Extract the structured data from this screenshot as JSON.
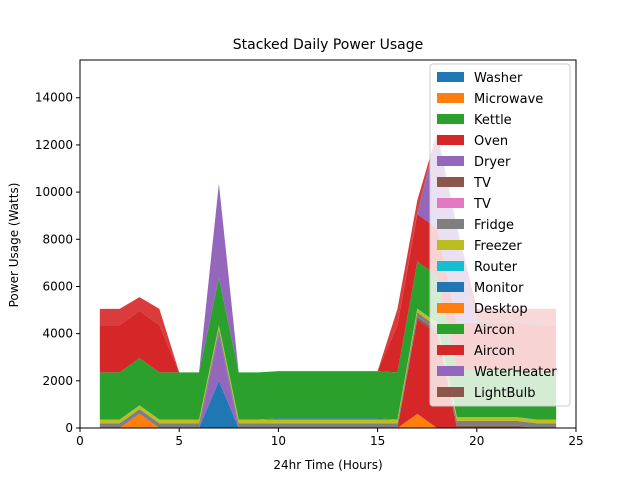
{
  "chart_data": {
    "type": "area",
    "title": "Stacked Daily Power Usage",
    "xlabel": "24hr Time (Hours)",
    "ylabel": "Power Usage (Watts)",
    "xlim": [
      0,
      25
    ],
    "ylim": [
      0,
      15600
    ],
    "xticks": [
      0,
      5,
      10,
      15,
      20,
      25
    ],
    "yticks": [
      0,
      2000,
      4000,
      6000,
      8000,
      10000,
      12000,
      14000
    ],
    "grid": false,
    "legend_position": "top-right",
    "x": [
      1,
      2,
      3,
      4,
      5,
      6,
      7,
      8,
      9,
      10,
      11,
      12,
      13,
      14,
      15,
      16,
      17,
      18,
      19,
      20,
      21,
      22,
      23,
      24
    ],
    "series": [
      {
        "name": "Washer",
        "color": "#1f77b4",
        "values": [
          0,
          0,
          0,
          0,
          0,
          0,
          2000,
          0,
          0,
          0,
          0,
          0,
          0,
          0,
          0,
          0,
          0,
          0,
          0,
          0,
          0,
          0,
          0,
          0
        ]
      },
      {
        "name": "Microwave",
        "color": "#ff7f0e",
        "values": [
          0,
          0,
          600,
          0,
          0,
          0,
          0,
          0,
          0,
          0,
          0,
          0,
          0,
          0,
          0,
          0,
          600,
          0,
          0,
          0,
          0,
          0,
          0,
          0
        ]
      },
      {
        "name": "Kettle",
        "color": "#2ca02c",
        "values": [
          0,
          0,
          0,
          0,
          0,
          0,
          0,
          0,
          0,
          0,
          0,
          0,
          0,
          0,
          0,
          0,
          0,
          0,
          0,
          0,
          0,
          0,
          0,
          0
        ]
      },
      {
        "name": "Oven",
        "color": "#d62728",
        "values": [
          0,
          0,
          0,
          0,
          0,
          0,
          0,
          0,
          0,
          0,
          0,
          0,
          0,
          0,
          0,
          0,
          4000,
          4000,
          0,
          0,
          0,
          0,
          0,
          0
        ]
      },
      {
        "name": "Dryer",
        "color": "#9467bd",
        "values": [
          0,
          0,
          0,
          0,
          0,
          0,
          2000,
          0,
          0,
          0,
          0,
          0,
          0,
          0,
          0,
          0,
          0,
          0,
          0,
          0,
          0,
          0,
          0,
          0
        ]
      },
      {
        "name": "TV",
        "color": "#8c564b",
        "values": [
          0,
          0,
          0,
          0,
          0,
          0,
          0,
          0,
          0,
          0,
          0,
          0,
          0,
          0,
          0,
          0,
          100,
          100,
          100,
          100,
          100,
          100,
          0,
          0
        ]
      },
      {
        "name": "TV",
        "color": "#e377c2",
        "values": [
          0,
          0,
          0,
          0,
          0,
          0,
          0,
          0,
          0,
          0,
          0,
          0,
          0,
          0,
          0,
          0,
          0,
          0,
          0,
          0,
          0,
          0,
          0,
          0
        ]
      },
      {
        "name": "Fridge",
        "color": "#7f7f7f",
        "values": [
          200,
          200,
          200,
          200,
          200,
          200,
          200,
          200,
          200,
          200,
          200,
          200,
          200,
          200,
          200,
          200,
          200,
          200,
          200,
          200,
          200,
          200,
          200,
          200
        ]
      },
      {
        "name": "Freezer",
        "color": "#bcbd22",
        "values": [
          150,
          150,
          150,
          150,
          150,
          150,
          150,
          150,
          150,
          150,
          150,
          150,
          150,
          150,
          150,
          150,
          150,
          150,
          150,
          150,
          150,
          150,
          150,
          150
        ]
      },
      {
        "name": "Router",
        "color": "#17becf",
        "values": [
          10,
          10,
          10,
          10,
          10,
          10,
          10,
          10,
          10,
          10,
          10,
          10,
          10,
          10,
          10,
          10,
          10,
          10,
          10,
          10,
          10,
          10,
          10,
          10
        ]
      },
      {
        "name": "Monitor",
        "color": "#1f77b4",
        "values": [
          0,
          0,
          0,
          0,
          0,
          0,
          0,
          0,
          0,
          50,
          50,
          50,
          50,
          50,
          50,
          0,
          0,
          0,
          0,
          0,
          0,
          0,
          0,
          0
        ]
      },
      {
        "name": "Desktop",
        "color": "#ff7f0e",
        "values": [
          0,
          0,
          0,
          0,
          0,
          0,
          0,
          0,
          0,
          0,
          0,
          0,
          0,
          0,
          0,
          0,
          0,
          0,
          0,
          0,
          0,
          0,
          0,
          0
        ]
      },
      {
        "name": "Aircon",
        "color": "#2ca02c",
        "values": [
          2000,
          2000,
          2000,
          2000,
          2000,
          2000,
          2000,
          2000,
          2000,
          2000,
          2000,
          2000,
          2000,
          2000,
          2000,
          2000,
          2000,
          2000,
          2000,
          2000,
          2000,
          2000,
          2000,
          2000
        ]
      },
      {
        "name": "Aircon",
        "color": "#d62728",
        "values": [
          2000,
          2000,
          2000,
          2000,
          0,
          0,
          0,
          0,
          0,
          0,
          0,
          0,
          0,
          0,
          0,
          2000,
          2000,
          2000,
          2000,
          2000,
          2000,
          2000,
          2000,
          2000
        ]
      },
      {
        "name": "WaterHeater",
        "color": "#9467bd",
        "values": [
          0,
          0,
          0,
          0,
          0,
          0,
          4000,
          0,
          0,
          0,
          0,
          0,
          0,
          0,
          0,
          0,
          0,
          4000,
          4000,
          0,
          0,
          0,
          0,
          0
        ]
      },
      {
        "name": "LightBulb",
        "color": "#8c564b",
        "values": [
          0,
          0,
          0,
          0,
          0,
          0,
          0,
          0,
          0,
          0,
          0,
          0,
          0,
          0,
          0,
          0,
          60,
          60,
          60,
          60,
          60,
          60,
          60,
          0
        ]
      }
    ],
    "overlay_series": [
      {
        "name": "Desktop",
        "color": "#ff7f0e",
        "values": [
          1050,
          1050,
          1550,
          1050,
          350,
          350,
          350,
          350,
          350,
          400,
          400,
          400,
          400,
          400,
          400,
          1050,
          1050,
          1550,
          1050,
          1050,
          1050,
          1050,
          1050,
          1050
        ]
      },
      {
        "name": "Aircon",
        "color": "#2ca02c",
        "values": [
          3050,
          3050,
          3550,
          3050,
          2350,
          2350,
          8350,
          2350,
          2350,
          2400,
          2400,
          2400,
          2400,
          2400,
          2400,
          3050,
          7650,
          7550,
          3050,
          3050,
          3050,
          3050,
          3050,
          3050
        ]
      },
      {
        "name": "Aircon",
        "color": "#d62728",
        "values": [
          5050,
          5050,
          5550,
          5050,
          2350,
          2350,
          8350,
          2350,
          2350,
          2400,
          2400,
          2400,
          2400,
          2400,
          2400,
          5050,
          9650,
          10550,
          5050,
          5050,
          5050,
          5050,
          5050,
          5050
        ]
      }
    ]
  }
}
